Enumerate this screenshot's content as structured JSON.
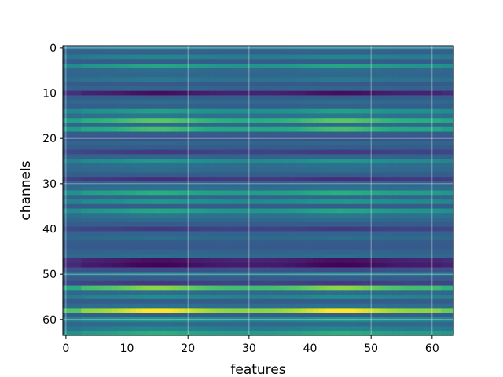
{
  "chart_data": {
    "type": "heatmap",
    "title": "",
    "xlabel": "features",
    "ylabel": "channels",
    "n_rows": 64,
    "n_cols": 64,
    "xlim": [
      -0.5,
      63.5
    ],
    "ylim": [
      63.5,
      -0.5
    ],
    "x_ticks": [
      0,
      10,
      20,
      30,
      40,
      50,
      60
    ],
    "y_ticks": [
      0,
      10,
      20,
      30,
      40,
      50,
      60
    ],
    "grid": true,
    "colormap": "viridis",
    "value_range": [
      0,
      1
    ],
    "row_means": [
      0.42,
      0.32,
      0.45,
      0.3,
      0.58,
      0.36,
      0.34,
      0.4,
      0.28,
      0.33,
      0.05,
      0.3,
      0.36,
      0.31,
      0.55,
      0.4,
      0.72,
      0.35,
      0.68,
      0.3,
      0.26,
      0.34,
      0.3,
      0.18,
      0.33,
      0.52,
      0.38,
      0.36,
      0.3,
      0.14,
      0.33,
      0.38,
      0.62,
      0.34,
      0.52,
      0.3,
      0.58,
      0.4,
      0.35,
      0.3,
      0.18,
      0.33,
      0.36,
      0.3,
      0.28,
      0.33,
      0.36,
      0.06,
      0.02,
      0.24,
      0.42,
      0.3,
      0.18,
      0.8,
      0.36,
      0.48,
      0.3,
      0.38,
      0.97,
      0.3,
      0.52,
      0.36,
      0.45,
      0.62
    ],
    "column_profile": "brighter around features 10-20 and 40-50, darker near features 0-3 and 28-33"
  }
}
